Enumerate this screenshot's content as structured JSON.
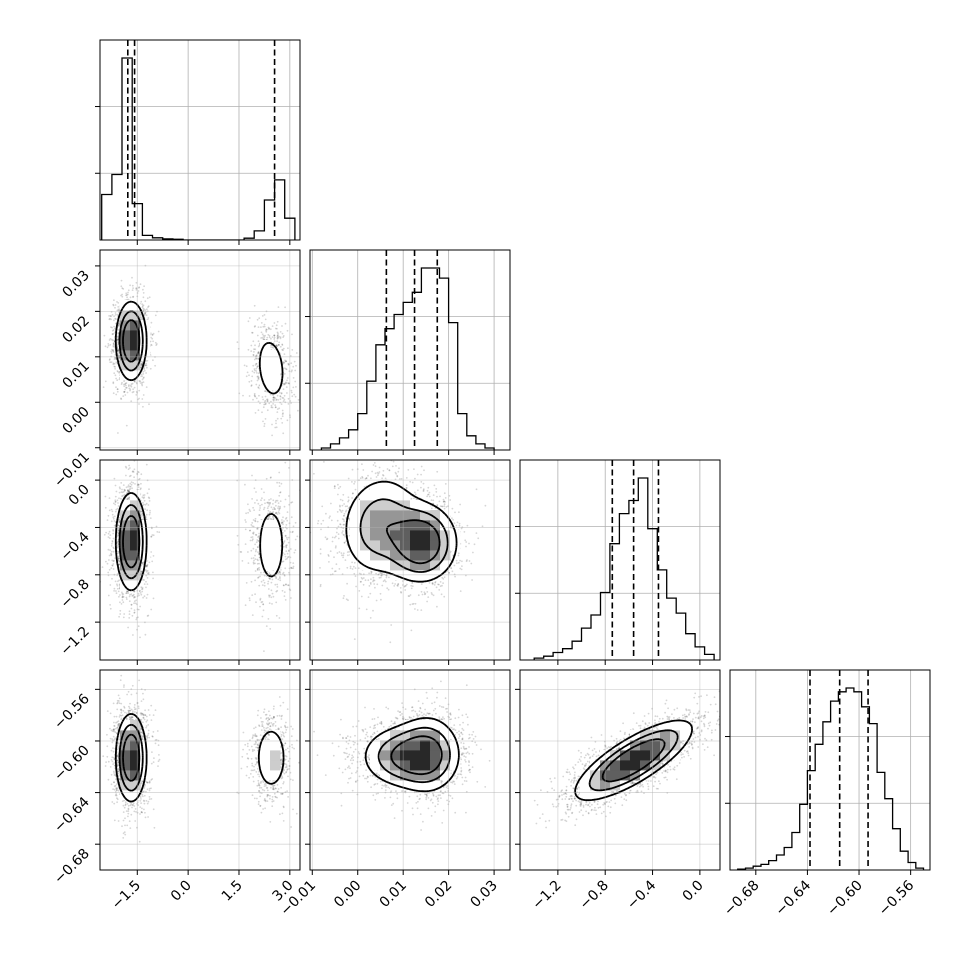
{
  "chart_data": {
    "type": "corner",
    "parameters": 4,
    "grid": true,
    "axes": [
      {
        "range": [
          -2.6,
          3.3
        ],
        "ticks": [
          -1.5,
          0.0,
          1.5,
          3.0
        ],
        "tick_labels": [
          "−1.5",
          "0.0",
          "1.5",
          "3.0"
        ]
      },
      {
        "range": [
          -0.0105,
          0.0335
        ],
        "ticks": [
          -0.01,
          0.0,
          0.01,
          0.02,
          0.03
        ],
        "tick_labels": [
          "−0.01",
          "0.00",
          "0.01",
          "0.02",
          "0.03"
        ]
      },
      {
        "range": [
          -1.52,
          0.17
        ],
        "ticks": [
          -1.2,
          -0.8,
          -0.4,
          0.0
        ],
        "tick_labels": [
          "−1.2",
          "−0.8",
          "−0.4",
          "0.0"
        ]
      },
      {
        "range": [
          -0.7,
          -0.545
        ],
        "ticks": [
          -0.68,
          -0.64,
          -0.6,
          -0.56
        ],
        "tick_labels": [
          "−0.68",
          "−0.64",
          "−0.60",
          "−0.56"
        ]
      }
    ],
    "histograms": [
      {
        "parameter": 0,
        "bin_edges": [
          -2.55,
          -2.25,
          -1.95,
          -1.65,
          -1.35,
          -1.05,
          -0.75,
          -0.45,
          -0.15,
          0.15,
          0.45,
          0.75,
          1.05,
          1.35,
          1.65,
          1.95,
          2.25,
          2.55,
          2.85,
          3.15
        ],
        "counts": [
          0.25,
          0.36,
          1.0,
          0.2,
          0.025,
          0.012,
          0.006,
          0.004,
          0,
          0,
          0,
          0,
          0,
          0,
          0.01,
          0.05,
          0.22,
          0.33,
          0.12
        ],
        "quantiles": [
          -1.78,
          -1.58,
          2.55
        ]
      },
      {
        "parameter": 1,
        "bin_edges": [
          -0.008,
          -0.006,
          -0.004,
          -0.002,
          0.0,
          0.002,
          0.004,
          0.006,
          0.008,
          0.01,
          0.012,
          0.014,
          0.016,
          0.018,
          0.02,
          0.022,
          0.024,
          0.026,
          0.028,
          0.03
        ],
        "counts": [
          0.01,
          0.03,
          0.06,
          0.1,
          0.18,
          0.34,
          0.52,
          0.6,
          0.67,
          0.73,
          0.78,
          0.9,
          0.9,
          0.85,
          0.63,
          0.18,
          0.07,
          0.03,
          0.01
        ],
        "quantiles": [
          0.0063,
          0.0125,
          0.0175
        ]
      },
      {
        "parameter": 2,
        "bin_edges": [
          -1.4,
          -1.32,
          -1.24,
          -1.16,
          -1.08,
          -1.0,
          -0.92,
          -0.84,
          -0.76,
          -0.68,
          -0.6,
          -0.52,
          -0.44,
          -0.36,
          -0.28,
          -0.2,
          -0.12,
          -0.04,
          0.04,
          0.12
        ],
        "counts": [
          0.01,
          0.02,
          0.04,
          0.06,
          0.1,
          0.17,
          0.24,
          0.36,
          0.62,
          0.78,
          0.85,
          0.97,
          0.7,
          0.48,
          0.33,
          0.25,
          0.14,
          0.07,
          0.03
        ],
        "quantiles": [
          -0.74,
          -0.56,
          -0.35
        ]
      },
      {
        "parameter": 3,
        "bin_edges": [
          -0.694,
          -0.688,
          -0.682,
          -0.676,
          -0.67,
          -0.664,
          -0.658,
          -0.652,
          -0.646,
          -0.64,
          -0.634,
          -0.628,
          -0.622,
          -0.616,
          -0.61,
          -0.604,
          -0.598,
          -0.592,
          -0.586,
          -0.58,
          -0.574,
          -0.568,
          -0.562,
          -0.556,
          -0.55
        ],
        "counts": [
          0.005,
          0.01,
          0.02,
          0.03,
          0.05,
          0.08,
          0.12,
          0.2,
          0.35,
          0.53,
          0.67,
          0.79,
          0.9,
          0.95,
          0.97,
          0.95,
          0.87,
          0.78,
          0.52,
          0.38,
          0.22,
          0.1,
          0.04,
          0.01
        ],
        "quantiles": [
          -0.638,
          -0.615,
          -0.593
        ]
      }
    ],
    "density_2d": [
      {
        "x": 0,
        "y": 1,
        "modes": [
          {
            "center": [
              -1.68,
              0.0135
            ],
            "spread": [
              0.22,
              0.0042
            ],
            "weight": 0.75,
            "corr": 0
          },
          {
            "center": [
              2.45,
              0.0075
            ],
            "spread": [
              0.27,
              0.0045
            ],
            "weight": 0.25,
            "corr": -0.2
          }
        ]
      },
      {
        "x": 0,
        "y": 2,
        "modes": [
          {
            "center": [
              -1.68,
              -0.52
            ],
            "spread": [
              0.22,
              0.2
            ],
            "weight": 0.75,
            "corr": 0
          },
          {
            "center": [
              2.45,
              -0.55
            ],
            "spread": [
              0.27,
              0.22
            ],
            "weight": 0.25,
            "corr": 0
          }
        ]
      },
      {
        "x": 0,
        "y": 3,
        "modes": [
          {
            "center": [
              -1.68,
              -0.613
            ],
            "spread": [
              0.22,
              0.0165
            ],
            "weight": 0.75,
            "corr": 0
          },
          {
            "center": [
              2.45,
              -0.613
            ],
            "spread": [
              0.27,
              0.015
            ],
            "weight": 0.25,
            "corr": 0
          }
        ]
      },
      {
        "x": 1,
        "y": 2,
        "modes": [
          {
            "center": [
              0.014,
              -0.53
            ],
            "spread": [
              0.0038,
              0.16
            ],
            "weight": 0.55,
            "corr": 0
          },
          {
            "center": [
              0.005,
              -0.38
            ],
            "spread": [
              0.0045,
              0.22
            ],
            "weight": 0.45,
            "corr": 0.1
          }
        ]
      },
      {
        "x": 1,
        "y": 3,
        "modes": [
          {
            "center": [
              0.0105,
              -0.612
            ],
            "spread": [
              0.0048,
              0.012
            ],
            "weight": 0.55,
            "corr": 0
          },
          {
            "center": [
              0.0155,
              -0.61
            ],
            "spread": [
              0.0035,
              0.015
            ],
            "weight": 0.45,
            "corr": 0
          }
        ]
      },
      {
        "x": 2,
        "y": 3,
        "modes": [
          {
            "center": [
              -0.56,
              -0.615
            ],
            "spread": [
              0.24,
              0.015
            ],
            "weight": 1.0,
            "corr": 0.78
          }
        ]
      }
    ]
  }
}
